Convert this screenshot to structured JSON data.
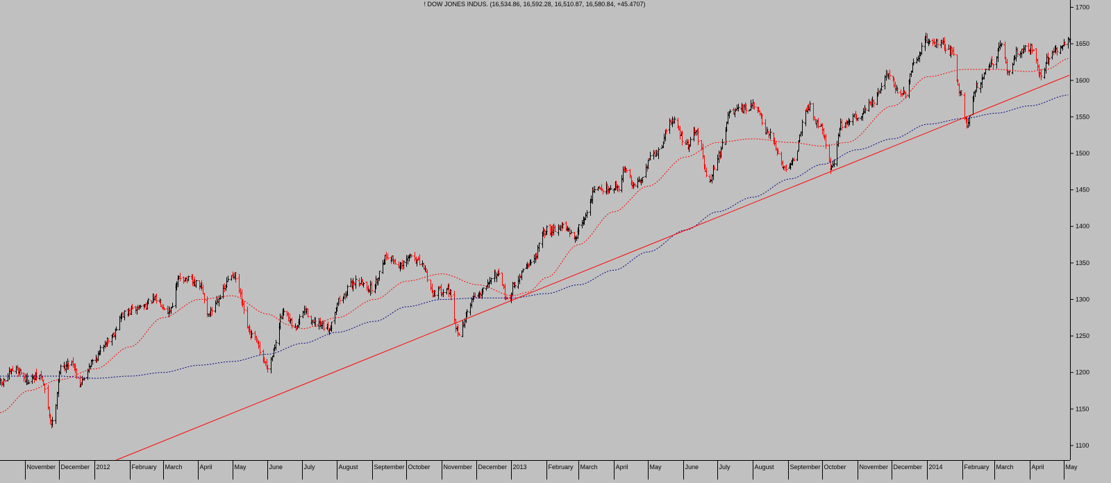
{
  "header": {
    "title": "! DOW JONES INDUS. (16,534.86, 16,592.28, 16,510.87, 16,580.84, +45.4707)"
  },
  "chart_data": {
    "type": "ohlc",
    "title": "! DOW JONES INDUS. (16,534.86, 16,592.28, 16,510.87, 16,580.84, +45.4707)",
    "ylim": [
      1080,
      1710
    ],
    "y_ticks": [
      1100,
      1150,
      1200,
      1250,
      1300,
      1350,
      1400,
      1450,
      1500,
      1550,
      1600,
      1650,
      1700
    ],
    "y_tick_labels": [
      "1100",
      "1150",
      "1200",
      "1250",
      "1300",
      "1350",
      "1400",
      "1450",
      "1500",
      "1550",
      "1600",
      "1650",
      "1700"
    ],
    "x_range": [
      "2011-10-10",
      "2014-05-06"
    ],
    "x_tick_labels": [
      {
        "date": "2011-11-01",
        "label": "November"
      },
      {
        "date": "2011-12-01",
        "label": "December"
      },
      {
        "date": "2012-01-01",
        "label": "2012"
      },
      {
        "date": "2012-02-01",
        "label": "February"
      },
      {
        "date": "2012-03-01",
        "label": "March"
      },
      {
        "date": "2012-04-01",
        "label": "April"
      },
      {
        "date": "2012-05-01",
        "label": "May"
      },
      {
        "date": "2012-06-01",
        "label": "June"
      },
      {
        "date": "2012-07-01",
        "label": "July"
      },
      {
        "date": "2012-08-01",
        "label": "August"
      },
      {
        "date": "2012-09-01",
        "label": "September"
      },
      {
        "date": "2012-10-01",
        "label": "October"
      },
      {
        "date": "2012-11-01",
        "label": "November"
      },
      {
        "date": "2012-12-01",
        "label": "December"
      },
      {
        "date": "2013-01-01",
        "label": "2013"
      },
      {
        "date": "2013-02-01",
        "label": "February"
      },
      {
        "date": "2013-03-01",
        "label": "March"
      },
      {
        "date": "2013-04-01",
        "label": "April"
      },
      {
        "date": "2013-05-01",
        "label": "May"
      },
      {
        "date": "2013-06-01",
        "label": "June"
      },
      {
        "date": "2013-07-01",
        "label": "July"
      },
      {
        "date": "2013-08-01",
        "label": "August"
      },
      {
        "date": "2013-09-01",
        "label": "September"
      },
      {
        "date": "2013-10-01",
        "label": "October"
      },
      {
        "date": "2013-11-01",
        "label": "November"
      },
      {
        "date": "2013-12-01",
        "label": "December"
      },
      {
        "date": "2014-01-01",
        "label": "2014"
      },
      {
        "date": "2014-02-01",
        "label": "February"
      },
      {
        "date": "2014-03-01",
        "label": "March"
      },
      {
        "date": "2014-04-01",
        "label": "April"
      },
      {
        "date": "2014-05-01",
        "label": "May"
      }
    ],
    "close_anchors": [
      [
        "2011-10-10",
        1185
      ],
      [
        "2011-10-24",
        1205
      ],
      [
        "2011-11-03",
        1190
      ],
      [
        "2011-11-14",
        1195
      ],
      [
        "2011-11-25",
        1130
      ],
      [
        "2011-12-02",
        1205
      ],
      [
        "2011-12-12",
        1215
      ],
      [
        "2011-12-19",
        1185
      ],
      [
        "2011-12-30",
        1215
      ],
      [
        "2012-01-13",
        1245
      ],
      [
        "2012-01-27",
        1280
      ],
      [
        "2012-02-10",
        1290
      ],
      [
        "2012-02-24",
        1300
      ],
      [
        "2012-03-06",
        1285
      ],
      [
        "2012-03-16",
        1330
      ],
      [
        "2012-04-02",
        1320
      ],
      [
        "2012-04-10",
        1280
      ],
      [
        "2012-04-20",
        1305
      ],
      [
        "2012-05-01",
        1335
      ],
      [
        "2012-05-18",
        1250
      ],
      [
        "2012-06-01",
        1210
      ],
      [
        "2012-06-15",
        1280
      ],
      [
        "2012-06-25",
        1260
      ],
      [
        "2012-07-03",
        1285
      ],
      [
        "2012-07-13",
        1265
      ],
      [
        "2012-07-24",
        1260
      ],
      [
        "2012-08-03",
        1300
      ],
      [
        "2012-08-17",
        1325
      ],
      [
        "2012-08-31",
        1315
      ],
      [
        "2012-09-14",
        1360
      ],
      [
        "2012-09-26",
        1345
      ],
      [
        "2012-10-05",
        1360
      ],
      [
        "2012-10-15",
        1345
      ],
      [
        "2012-10-24",
        1310
      ],
      [
        "2012-11-06",
        1315
      ],
      [
        "2012-11-15",
        1255
      ],
      [
        "2012-11-30",
        1305
      ],
      [
        "2012-12-18",
        1335
      ],
      [
        "2012-12-31",
        1295
      ],
      [
        "2013-01-02",
        1320
      ],
      [
        "2013-01-18",
        1350
      ],
      [
        "2013-02-01",
        1395
      ],
      [
        "2013-02-15",
        1400
      ],
      [
        "2013-02-25",
        1385
      ],
      [
        "2013-03-05",
        1410
      ],
      [
        "2013-03-15",
        1450
      ],
      [
        "2013-04-05",
        1455
      ],
      [
        "2013-04-11",
        1480
      ],
      [
        "2013-04-18",
        1455
      ],
      [
        "2013-05-08",
        1500
      ],
      [
        "2013-05-22",
        1545
      ],
      [
        "2013-06-05",
        1510
      ],
      [
        "2013-06-11",
        1530
      ],
      [
        "2013-06-24",
        1465
      ],
      [
        "2013-07-01",
        1495
      ],
      [
        "2013-07-12",
        1555
      ],
      [
        "2013-07-23",
        1560
      ],
      [
        "2013-08-02",
        1565
      ],
      [
        "2013-08-15",
        1525
      ],
      [
        "2013-08-30",
        1480
      ],
      [
        "2013-09-05",
        1490
      ],
      [
        "2013-09-18",
        1565
      ],
      [
        "2013-09-30",
        1535
      ],
      [
        "2013-10-09",
        1480
      ],
      [
        "2013-10-18",
        1540
      ],
      [
        "2013-10-31",
        1550
      ],
      [
        "2013-11-14",
        1570
      ],
      [
        "2013-11-29",
        1610
      ],
      [
        "2013-12-06",
        1585
      ],
      [
        "2013-12-13",
        1580
      ],
      [
        "2013-12-20",
        1620
      ],
      [
        "2013-12-31",
        1655
      ],
      [
        "2014-01-13",
        1650
      ],
      [
        "2014-01-22",
        1640
      ],
      [
        "2014-01-31",
        1580
      ],
      [
        "2014-02-05",
        1540
      ],
      [
        "2014-02-14",
        1595
      ],
      [
        "2014-02-27",
        1625
      ],
      [
        "2014-03-07",
        1645
      ],
      [
        "2014-03-14",
        1610
      ],
      [
        "2014-03-21",
        1640
      ],
      [
        "2014-04-04",
        1645
      ],
      [
        "2014-04-11",
        1605
      ],
      [
        "2014-04-17",
        1630
      ],
      [
        "2014-04-25",
        1640
      ],
      [
        "2014-05-06",
        1655
      ]
    ],
    "ma_short_anchors": [
      [
        "2011-10-10",
        1145
      ],
      [
        "2011-11-04",
        1175
      ],
      [
        "2011-12-01",
        1190
      ],
      [
        "2012-01-02",
        1205
      ],
      [
        "2012-02-01",
        1235
      ],
      [
        "2012-03-01",
        1275
      ],
      [
        "2012-04-02",
        1300
      ],
      [
        "2012-05-01",
        1305
      ],
      [
        "2012-06-01",
        1280
      ],
      [
        "2012-06-20",
        1265
      ],
      [
        "2012-07-02",
        1260
      ],
      [
        "2012-08-01",
        1275
      ],
      [
        "2012-09-03",
        1300
      ],
      [
        "2012-10-01",
        1325
      ],
      [
        "2012-11-01",
        1335
      ],
      [
        "2012-12-03",
        1320
      ],
      [
        "2013-01-02",
        1305
      ],
      [
        "2013-01-16",
        1310
      ],
      [
        "2013-02-01",
        1330
      ],
      [
        "2013-03-01",
        1375
      ],
      [
        "2013-04-01",
        1420
      ],
      [
        "2013-05-01",
        1455
      ],
      [
        "2013-06-03",
        1495
      ],
      [
        "2013-07-01",
        1515
      ],
      [
        "2013-08-01",
        1520
      ],
      [
        "2013-09-03",
        1515
      ],
      [
        "2013-10-01",
        1510
      ],
      [
        "2013-10-23",
        1515
      ],
      [
        "2013-12-02",
        1565
      ],
      [
        "2014-01-02",
        1605
      ],
      [
        "2014-02-03",
        1615
      ],
      [
        "2014-03-03",
        1615
      ],
      [
        "2014-04-01",
        1612
      ],
      [
        "2014-04-16",
        1615
      ],
      [
        "2014-05-06",
        1630
      ]
    ],
    "ma_long_anchors": [
      [
        "2011-10-10",
        1195
      ],
      [
        "2011-12-01",
        1195
      ],
      [
        "2012-01-02",
        1192
      ],
      [
        "2012-02-01",
        1195
      ],
      [
        "2012-03-01",
        1200
      ],
      [
        "2012-04-02",
        1210
      ],
      [
        "2012-05-01",
        1215
      ],
      [
        "2012-06-01",
        1225
      ],
      [
        "2012-07-02",
        1240
      ],
      [
        "2012-08-01",
        1255
      ],
      [
        "2012-09-03",
        1270
      ],
      [
        "2012-10-01",
        1290
      ],
      [
        "2012-11-01",
        1300
      ],
      [
        "2012-12-03",
        1302
      ],
      [
        "2013-01-02",
        1302
      ],
      [
        "2013-02-01",
        1308
      ],
      [
        "2013-03-01",
        1320
      ],
      [
        "2013-04-01",
        1340
      ],
      [
        "2013-05-01",
        1365
      ],
      [
        "2013-06-03",
        1395
      ],
      [
        "2013-07-01",
        1420
      ],
      [
        "2013-08-01",
        1440
      ],
      [
        "2013-09-03",
        1465
      ],
      [
        "2013-10-01",
        1485
      ],
      [
        "2013-11-01",
        1505
      ],
      [
        "2013-12-02",
        1520
      ],
      [
        "2014-01-02",
        1540
      ],
      [
        "2014-02-03",
        1548
      ],
      [
        "2014-03-03",
        1555
      ],
      [
        "2014-04-01",
        1565
      ],
      [
        "2014-05-06",
        1580
      ]
    ],
    "trendline": {
      "start": [
        "2012-01-20",
        1080
      ],
      "end": [
        "2014-05-06",
        1607
      ],
      "color": "#ff0000"
    },
    "colors": {
      "background": "#c0c0c0",
      "up_bar": "#000000",
      "down_bar": "#ff0000",
      "ma_short": "#ff0000",
      "ma_long": "#000080",
      "trendline": "#ff0000",
      "axis_text": "#000000"
    },
    "grid": false
  }
}
